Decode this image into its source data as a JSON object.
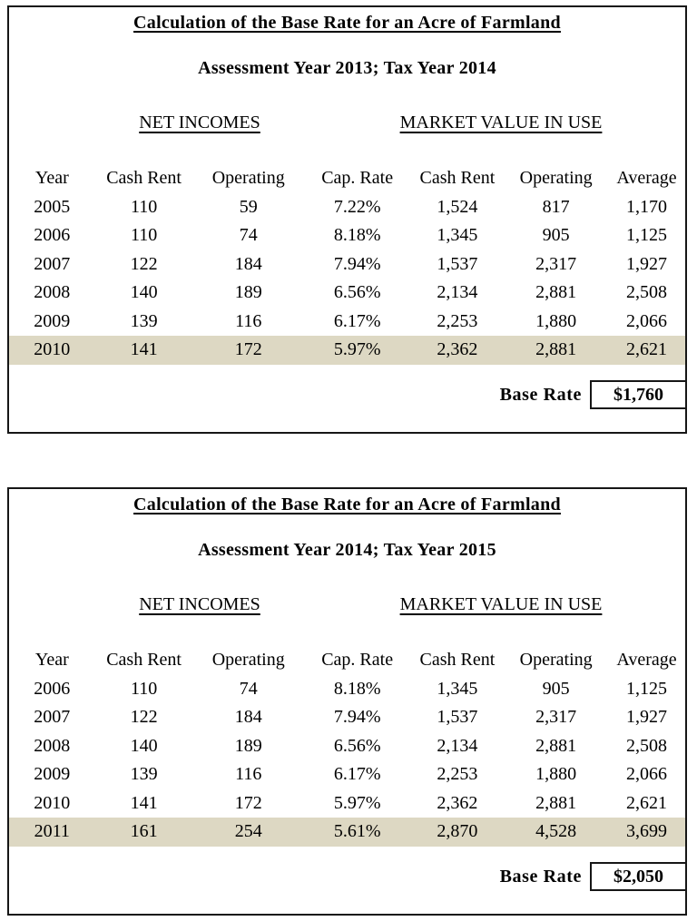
{
  "colors": {
    "highlight_row": "#DDD8C3",
    "border": "#161616",
    "text": "#000000",
    "background": "#FFFFFF"
  },
  "tables": [
    {
      "title": "Calculation of the Base Rate for an Acre of Farmland",
      "subtitle": "Assessment Year 2013; Tax Year 2014",
      "section_left": "NET INCOMES",
      "section_right": "MARKET VALUE IN USE",
      "columns": [
        "Year",
        "Cash Rent",
        "Operating",
        "Cap. Rate",
        "Cash Rent",
        "Operating",
        "Average"
      ],
      "rows": [
        {
          "cells": [
            "2005",
            "110",
            "59",
            "7.22%",
            "1,524",
            "817",
            "1,170"
          ],
          "highlight": false
        },
        {
          "cells": [
            "2006",
            "110",
            "74",
            "8.18%",
            "1,345",
            "905",
            "1,125"
          ],
          "highlight": false
        },
        {
          "cells": [
            "2007",
            "122",
            "184",
            "7.94%",
            "1,537",
            "2,317",
            "1,927"
          ],
          "highlight": false
        },
        {
          "cells": [
            "2008",
            "140",
            "189",
            "6.56%",
            "2,134",
            "2,881",
            "2,508"
          ],
          "highlight": false
        },
        {
          "cells": [
            "2009",
            "139",
            "116",
            "6.17%",
            "2,253",
            "1,880",
            "2,066"
          ],
          "highlight": false
        },
        {
          "cells": [
            "2010",
            "141",
            "172",
            "5.97%",
            "2,362",
            "2,881",
            "2,621"
          ],
          "highlight": true
        }
      ],
      "base_rate_label": "Base Rate",
      "base_rate_value": "$1,760"
    },
    {
      "title": "Calculation of the Base Rate for an Acre of Farmland",
      "subtitle": "Assessment Year 2014; Tax Year 2015",
      "section_left": "NET INCOMES",
      "section_right": "MARKET VALUE IN USE",
      "columns": [
        "Year",
        "Cash Rent",
        "Operating",
        "Cap. Rate",
        "Cash Rent",
        "Operating",
        "Average"
      ],
      "rows": [
        {
          "cells": [
            "2006",
            "110",
            "74",
            "8.18%",
            "1,345",
            "905",
            "1,125"
          ],
          "highlight": false
        },
        {
          "cells": [
            "2007",
            "122",
            "184",
            "7.94%",
            "1,537",
            "2,317",
            "1,927"
          ],
          "highlight": false
        },
        {
          "cells": [
            "2008",
            "140",
            "189",
            "6.56%",
            "2,134",
            "2,881",
            "2,508"
          ],
          "highlight": false
        },
        {
          "cells": [
            "2009",
            "139",
            "116",
            "6.17%",
            "2,253",
            "1,880",
            "2,066"
          ],
          "highlight": false
        },
        {
          "cells": [
            "2010",
            "141",
            "172",
            "5.97%",
            "2,362",
            "2,881",
            "2,621"
          ],
          "highlight": false
        },
        {
          "cells": [
            "2011",
            "161",
            "254",
            "5.61%",
            "2,870",
            "4,528",
            "3,699"
          ],
          "highlight": true
        }
      ],
      "base_rate_label": "Base Rate",
      "base_rate_value": "$2,050"
    }
  ]
}
